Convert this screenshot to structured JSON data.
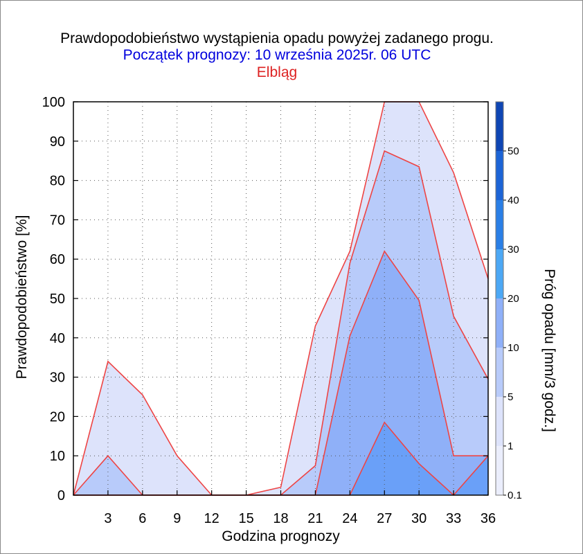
{
  "chart_data": {
    "type": "area",
    "title": "Prawdopodobieństwo wystąpienia opadu powyżej zadanego progu.",
    "subtitle": "Początek prognozy: 10 września 2025r. 06 UTC",
    "station": "Elbląg",
    "xlabel": "Godzina prognozy",
    "ylabel": "Prawdopodobieństwo [%]",
    "colorbar_label": "Próg opadu [mm/3 godz.]",
    "x": [
      0,
      3,
      6,
      9,
      12,
      15,
      18,
      21,
      24,
      27,
      30,
      33,
      36
    ],
    "xlim": [
      0,
      36
    ],
    "ylim": [
      0,
      100
    ],
    "x_ticks": [
      "3",
      "6",
      "9",
      "12",
      "15",
      "18",
      "21",
      "24",
      "27",
      "30",
      "33",
      "36"
    ],
    "y_ticks": [
      "0",
      "10",
      "20",
      "30",
      "40",
      "50",
      "60",
      "70",
      "80",
      "90",
      "100"
    ],
    "grid": true,
    "series": [
      {
        "name": "0.1",
        "color": "#dde3fb",
        "values": [
          0,
          34,
          25.5,
          10,
          0,
          0,
          2,
          43,
          62,
          100,
          100,
          82,
          55
        ]
      },
      {
        "name": "1",
        "color": "#b8cbfa",
        "values": [
          0,
          10,
          0,
          0,
          0,
          0,
          0,
          7.5,
          59,
          87.5,
          83.5,
          45.5,
          29.5
        ]
      },
      {
        "name": "5",
        "color": "#8fb0f8",
        "values": [
          0,
          0,
          0,
          0,
          0,
          0,
          0,
          0,
          40.5,
          62,
          49.5,
          10,
          10
        ]
      },
      {
        "name": "10",
        "color": "#6aa0f8",
        "values": [
          0,
          0,
          0,
          0,
          0,
          0,
          0,
          0,
          0,
          18.5,
          8,
          0,
          10
        ]
      }
    ],
    "colorbar": {
      "labels": [
        "0.1",
        "1",
        "5",
        "10",
        "20",
        "30",
        "40",
        "50"
      ],
      "colors": [
        "#ebeefc",
        "#dde3fb",
        "#b8cbfa",
        "#8fb0f8",
        "#4ca8f5",
        "#2a7fe6",
        "#1c64d6",
        "#0f46b4"
      ]
    },
    "outline_color": "#ee4444"
  }
}
